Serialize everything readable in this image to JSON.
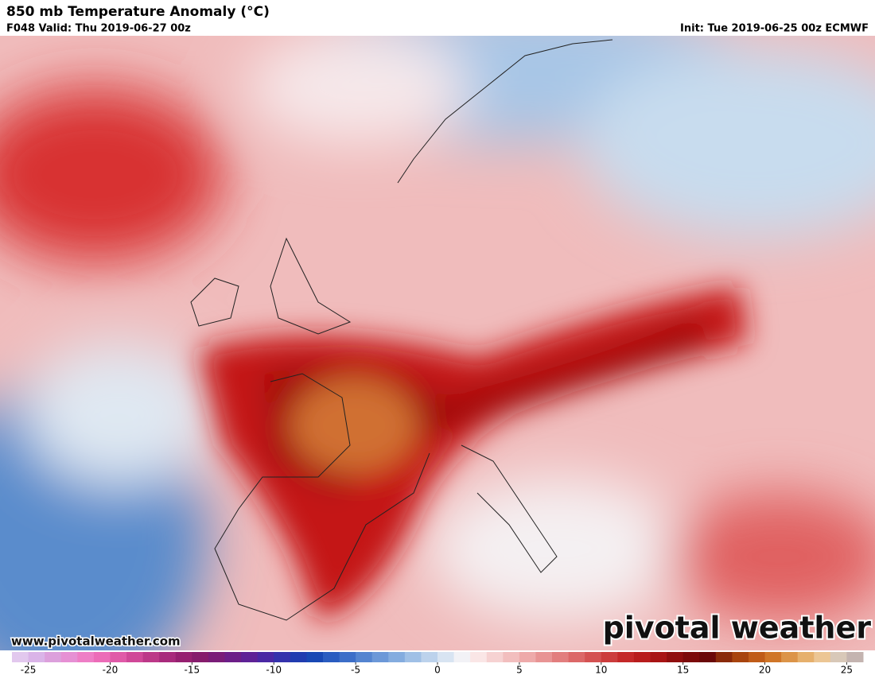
{
  "header": {
    "title": "850 mb Temperature Anomaly (°C)",
    "valid": "F048 Valid: Thu 2019-06-27 00z",
    "init": "Init: Tue 2019-06-25 00z ECMWF"
  },
  "footer": {
    "website": "www.pivotalweather.com",
    "logo": "pivotal weather"
  },
  "colorbar": {
    "range": [
      -26,
      26
    ],
    "ticks": [
      -25,
      -20,
      -15,
      -10,
      -5,
      0,
      5,
      10,
      15,
      20,
      25
    ],
    "colors": [
      "#e2c8ee",
      "#dab4e8",
      "#dca0dc",
      "#e690d4",
      "#ee7ec6",
      "#ec6cb8",
      "#e05aa8",
      "#d04898",
      "#bc3888",
      "#a82a7c",
      "#962070",
      "#861c6c",
      "#7a1c78",
      "#6c1e88",
      "#5e2296",
      "#4a28a4",
      "#3432ac",
      "#203cb0",
      "#1848b4",
      "#2a5cc0",
      "#3c6ec8",
      "#5484d0",
      "#6c98d8",
      "#84acdf",
      "#a0c0e6",
      "#bcd2ec",
      "#d8e4f2",
      "#f2f2f6",
      "#fae6e6",
      "#f6d2d2",
      "#f2bebe",
      "#eeaaaa",
      "#e89494",
      "#e27e7e",
      "#dc6868",
      "#d45252",
      "#cc3c3c",
      "#c42828",
      "#b81c1c",
      "#a81414",
      "#900e0e",
      "#7c0a0a",
      "#6a0808",
      "#8a2a0a",
      "#a8440e",
      "#c05c18",
      "#d07628",
      "#dc9448",
      "#e6b06c",
      "#ecc694",
      "#d8c8b8",
      "#c4b4b0"
    ]
  }
}
